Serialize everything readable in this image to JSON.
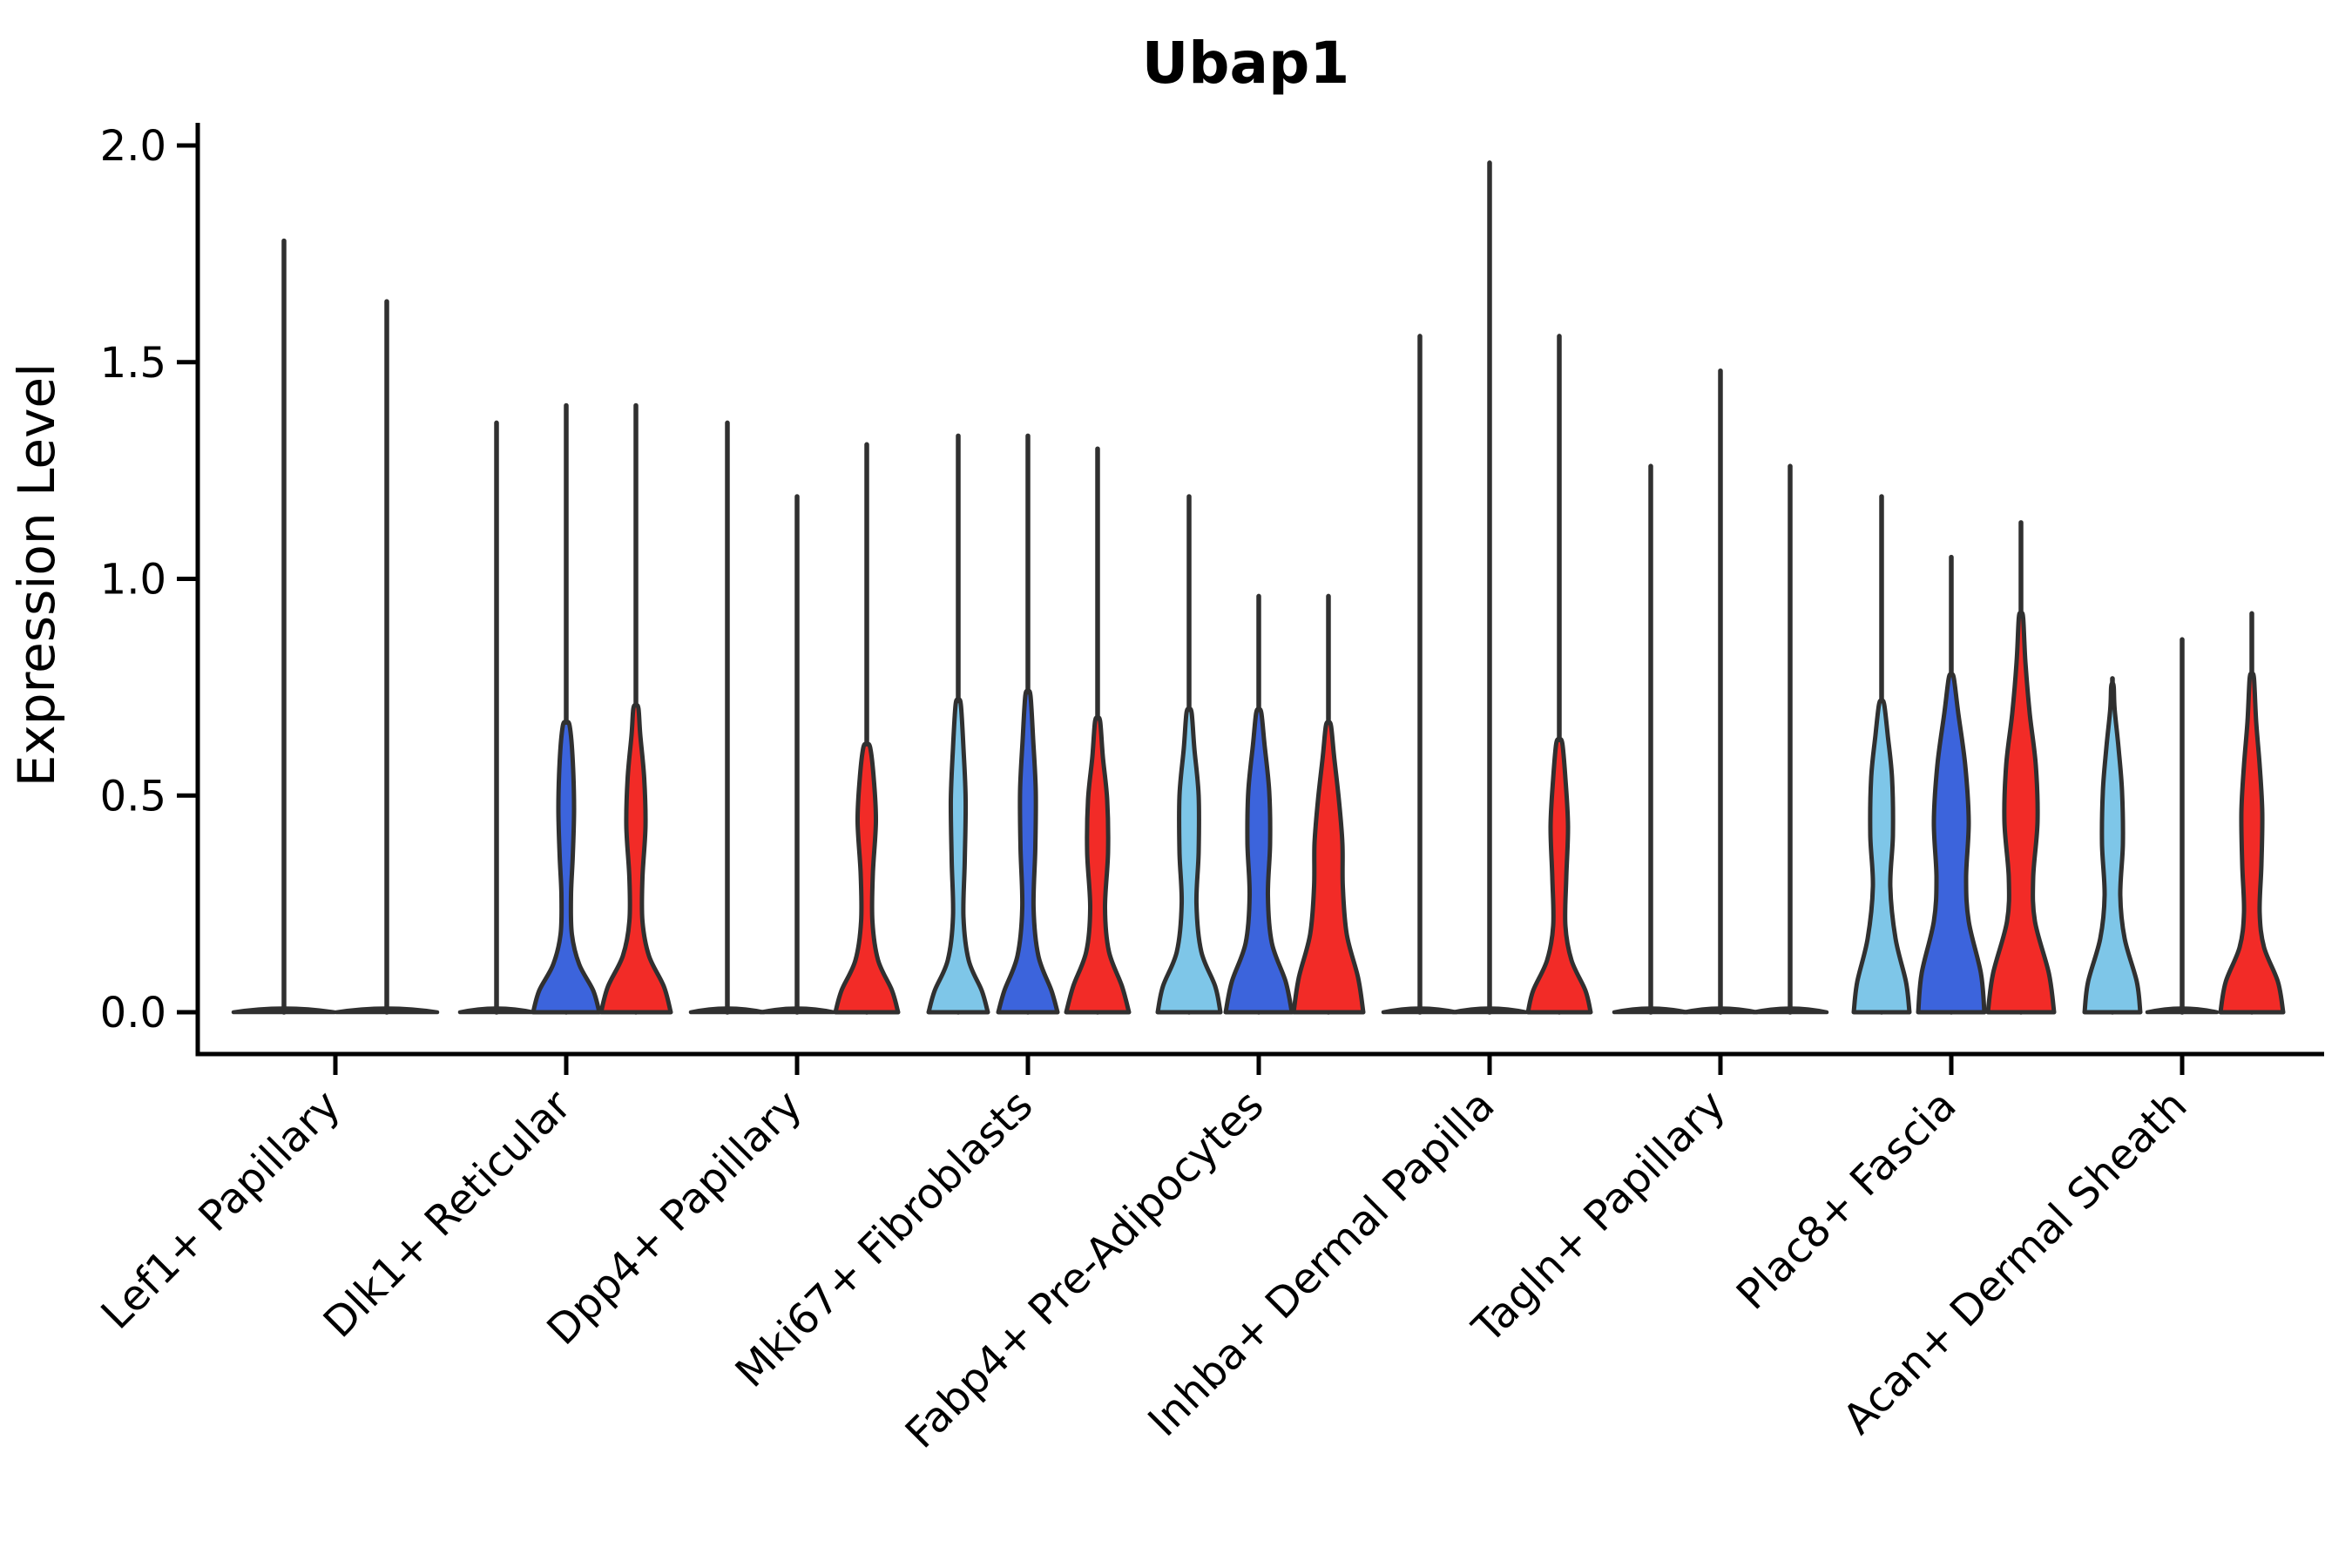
{
  "title": "Ubap1",
  "axes": {
    "ylabel": "Expression Level"
  },
  "chart_data": {
    "type": "violin",
    "title": "Ubap1",
    "xlabel": "",
    "ylabel": "Expression Level",
    "ylim": [
      0,
      2.05
    ],
    "yticks": [
      0.0,
      0.5,
      1.0,
      1.5,
      2.0
    ],
    "ytick_labels": [
      "0.0",
      "0.5",
      "1.0",
      "1.5",
      "2.0"
    ],
    "grid": "off",
    "legend_position": "none",
    "outline_color": "#303030",
    "split_colors": {
      "light_blue": "#7EC6E8",
      "dark_blue": "#3C64DC",
      "red": "#F22B27"
    },
    "categories": [
      "Lef1+ Papillary",
      "Dlk1+ Reticular",
      "Dpp4+ Papillary",
      "Mki67+ Fibroblasts",
      "Fabp4+ Pre-Adipocytes",
      "Inhba+ Dermal Papilla",
      "Tagln+ Papillary",
      "Plac8+ Fascia",
      "Acan+ Dermal Sheath"
    ],
    "groups": [
      {
        "label": "Lef1+ Papillary",
        "offsets": [
          -59,
          59
        ],
        "violins": [
          {
            "color": "light_blue",
            "flat": true,
            "foot": 58,
            "spike_top": 1.78
          },
          {
            "color": "red",
            "flat": true,
            "foot": 58,
            "spike_top": 1.64
          }
        ]
      },
      {
        "label": "Dlk1+ Reticular",
        "offsets": [
          -80,
          0,
          80
        ],
        "violins": [
          {
            "color": "light_blue",
            "flat": true,
            "foot": 42,
            "spike_top": 1.36
          },
          {
            "color": "dark_blue",
            "flat": false,
            "spike_top": 1.4,
            "profile": [
              [
                0,
                38
              ],
              [
                0.05,
                31
              ],
              [
                0.11,
                15
              ],
              [
                0.18,
                6.5
              ],
              [
                0.27,
                5.5
              ],
              [
                0.36,
                7.5
              ],
              [
                0.47,
                9
              ],
              [
                0.58,
                7.5
              ],
              [
                0.66,
                4
              ]
            ]
          },
          {
            "color": "red",
            "flat": false,
            "spike_top": 1.4,
            "profile": [
              [
                0,
                40
              ],
              [
                0.06,
                32
              ],
              [
                0.13,
                15
              ],
              [
                0.21,
                7.5
              ],
              [
                0.31,
                7.5
              ],
              [
                0.43,
                11
              ],
              [
                0.54,
                9.5
              ],
              [
                0.64,
                5
              ],
              [
                0.7,
                3
              ]
            ]
          }
        ]
      },
      {
        "label": "Dpp4+ Papillary",
        "offsets": [
          -80,
          0,
          80
        ],
        "violins": [
          {
            "color": "light_blue",
            "flat": true,
            "foot": 42,
            "spike_top": 1.36
          },
          {
            "color": "dark_blue",
            "flat": true,
            "foot": 42,
            "spike_top": 1.19
          },
          {
            "color": "red",
            "flat": false,
            "spike_top": 1.31,
            "profile": [
              [
                0,
                36
              ],
              [
                0.05,
                29
              ],
              [
                0.12,
                13
              ],
              [
                0.21,
                6.5
              ],
              [
                0.32,
                7
              ],
              [
                0.44,
                10.5
              ],
              [
                0.54,
                8
              ],
              [
                0.61,
                4
              ]
            ]
          }
        ]
      },
      {
        "label": "Mki67+ Fibroblasts",
        "offsets": [
          -80,
          0,
          80
        ],
        "violins": [
          {
            "color": "light_blue",
            "flat": false,
            "spike_top": 1.33,
            "profile": [
              [
                0,
                34
              ],
              [
                0.05,
                27
              ],
              [
                0.12,
                12
              ],
              [
                0.22,
                6
              ],
              [
                0.35,
                7.5
              ],
              [
                0.49,
                8.5
              ],
              [
                0.61,
                6
              ],
              [
                0.71,
                3
              ]
            ]
          },
          {
            "color": "dark_blue",
            "flat": false,
            "spike_top": 1.33,
            "profile": [
              [
                0,
                34
              ],
              [
                0.05,
                27
              ],
              [
                0.13,
                12
              ],
              [
                0.24,
                6.5
              ],
              [
                0.38,
                8.5
              ],
              [
                0.51,
                9
              ],
              [
                0.63,
                6
              ],
              [
                0.73,
                3
              ]
            ]
          },
          {
            "color": "red",
            "flat": false,
            "spike_top": 1.3,
            "profile": [
              [
                0,
                36
              ],
              [
                0.06,
                28
              ],
              [
                0.14,
                13
              ],
              [
                0.24,
                8.5
              ],
              [
                0.37,
                12
              ],
              [
                0.49,
                11
              ],
              [
                0.59,
                6
              ],
              [
                0.67,
                3
              ]
            ]
          }
        ]
      },
      {
        "label": "Fabp4+ Pre-Adipocytes",
        "offsets": [
          -80,
          0,
          80
        ],
        "violins": [
          {
            "color": "light_blue",
            "flat": false,
            "spike_top": 1.19,
            "profile": [
              [
                0,
                36
              ],
              [
                0.06,
                30
              ],
              [
                0.14,
                14
              ],
              [
                0.25,
                8.5
              ],
              [
                0.37,
                11
              ],
              [
                0.5,
                11
              ],
              [
                0.61,
                6
              ],
              [
                0.69,
                3
              ]
            ]
          },
          {
            "color": "dark_blue",
            "flat": false,
            "spike_top": 0.96,
            "profile": [
              [
                0,
                38
              ],
              [
                0.07,
                31
              ],
              [
                0.16,
                15
              ],
              [
                0.27,
                10.5
              ],
              [
                0.39,
                13
              ],
              [
                0.51,
                12
              ],
              [
                0.62,
                6.5
              ],
              [
                0.69,
                3
              ]
            ]
          },
          {
            "color": "red",
            "flat": false,
            "spike_top": 0.96,
            "profile": [
              [
                0,
                40
              ],
              [
                0.08,
                34
              ],
              [
                0.18,
                21
              ],
              [
                0.29,
                16.5
              ],
              [
                0.39,
                16
              ],
              [
                0.49,
                12
              ],
              [
                0.59,
                6.5
              ],
              [
                0.66,
                3
              ]
            ]
          }
        ]
      },
      {
        "label": "Inhba+ Dermal Papilla",
        "offsets": [
          -80,
          0,
          80
        ],
        "violins": [
          {
            "color": "light_blue",
            "flat": true,
            "foot": 42,
            "spike_top": 1.56
          },
          {
            "color": "dark_blue",
            "flat": true,
            "foot": 42,
            "spike_top": 1.96
          },
          {
            "color": "red",
            "flat": false,
            "spike_top": 1.56,
            "profile": [
              [
                0,
                36
              ],
              [
                0.05,
                30
              ],
              [
                0.12,
                14
              ],
              [
                0.2,
                7
              ],
              [
                0.31,
                8
              ],
              [
                0.43,
                10
              ],
              [
                0.54,
                7
              ],
              [
                0.62,
                3.5
              ]
            ]
          }
        ]
      },
      {
        "label": "Tagln+ Papillary",
        "offsets": [
          -80,
          0,
          80
        ],
        "violins": [
          {
            "color": "light_blue",
            "flat": true,
            "foot": 42,
            "spike_top": 1.26
          },
          {
            "color": "dark_blue",
            "flat": true,
            "foot": 42,
            "spike_top": 1.48
          },
          {
            "color": "red",
            "flat": true,
            "foot": 42,
            "spike_top": 1.26
          }
        ]
      },
      {
        "label": "Plac8+ Fascia",
        "offsets": [
          -80,
          0,
          80
        ],
        "violins": [
          {
            "color": "light_blue",
            "flat": false,
            "spike_top": 1.19,
            "profile": [
              [
                0,
                32
              ],
              [
                0.07,
                28
              ],
              [
                0.17,
                16
              ],
              [
                0.29,
                10
              ],
              [
                0.41,
                13
              ],
              [
                0.54,
                12
              ],
              [
                0.64,
                7
              ],
              [
                0.71,
                3
              ]
            ]
          },
          {
            "color": "dark_blue",
            "flat": false,
            "spike_top": 1.05,
            "profile": [
              [
                0,
                38
              ],
              [
                0.09,
                34
              ],
              [
                0.21,
                20
              ],
              [
                0.31,
                17
              ],
              [
                0.44,
                20
              ],
              [
                0.57,
                16
              ],
              [
                0.69,
                8
              ],
              [
                0.77,
                3
              ]
            ]
          },
          {
            "color": "red",
            "flat": false,
            "spike_top": 1.13,
            "profile": [
              [
                0,
                38
              ],
              [
                0.09,
                32
              ],
              [
                0.21,
                16
              ],
              [
                0.31,
                14
              ],
              [
                0.44,
                19
              ],
              [
                0.57,
                17
              ],
              [
                0.69,
                10
              ],
              [
                0.81,
                5
              ],
              [
                0.91,
                2.5
              ]
            ]
          }
        ]
      },
      {
        "label": "Acan+ Dermal Sheath",
        "offsets": [
          -80,
          0,
          80
        ],
        "violins": [
          {
            "color": "light_blue",
            "flat": false,
            "spike_top": 0.77,
            "profile": [
              [
                0,
                32
              ],
              [
                0.07,
                28
              ],
              [
                0.17,
                14
              ],
              [
                0.27,
                9
              ],
              [
                0.39,
                12
              ],
              [
                0.51,
                11
              ],
              [
                0.61,
                7
              ],
              [
                0.7,
                2.5
              ],
              [
                0.75,
                1.5
              ]
            ]
          },
          {
            "color": "dark_blue",
            "flat": true,
            "foot": 40,
            "spike_top": 0.86
          },
          {
            "color": "red",
            "flat": false,
            "spike_top": 0.92,
            "profile": [
              [
                0,
                36
              ],
              [
                0.07,
                30
              ],
              [
                0.15,
                14
              ],
              [
                0.23,
                9
              ],
              [
                0.34,
                11
              ],
              [
                0.46,
                12
              ],
              [
                0.57,
                9
              ],
              [
                0.67,
                5
              ],
              [
                0.77,
                2.5
              ]
            ]
          }
        ]
      }
    ]
  }
}
